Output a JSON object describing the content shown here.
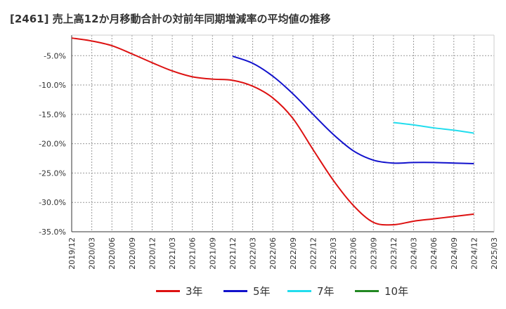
{
  "title": "[2461]  売上高12か月移動合計の対前年同期増減率の平均値の推移",
  "chart_data": {
    "type": "line",
    "title": "[2461]  売上高12か月移動合計の対前年同期増減率の平均値の推移",
    "xlabel": "",
    "ylabel": "",
    "x_ticks": [
      "2019/12",
      "2020/03",
      "2020/06",
      "2020/09",
      "2020/12",
      "2021/03",
      "2021/06",
      "2021/09",
      "2021/12",
      "2022/03",
      "2022/06",
      "2022/09",
      "2022/12",
      "2023/03",
      "2023/06",
      "2023/09",
      "2023/12",
      "2024/03",
      "2024/06",
      "2024/09",
      "2024/12",
      "2025/03"
    ],
    "y_ticks": [
      -5.0,
      -10.0,
      -15.0,
      -20.0,
      -25.0,
      -30.0,
      -35.0
    ],
    "y_tick_labels": [
      "-5.0%",
      "-10.0%",
      "-15.0%",
      "-20.0%",
      "-25.0%",
      "-30.0%",
      "-35.0%"
    ],
    "ylim": [
      -35.0,
      -1.5
    ],
    "grid": true,
    "legend_position": "bottom",
    "series": [
      {
        "name": "3年",
        "color": "#dd1111",
        "points": [
          [
            "2019/12",
            -2.0
          ],
          [
            "2020/03",
            -2.5
          ],
          [
            "2020/06",
            -3.3
          ],
          [
            "2020/09",
            -4.7
          ],
          [
            "2020/12",
            -6.2
          ],
          [
            "2021/03",
            -7.6
          ],
          [
            "2021/06",
            -8.6
          ],
          [
            "2021/09",
            -9.0
          ],
          [
            "2021/12",
            -9.2
          ],
          [
            "2022/03",
            -10.2
          ],
          [
            "2022/06",
            -12.2
          ],
          [
            "2022/09",
            -15.7
          ],
          [
            "2022/12",
            -21.0
          ],
          [
            "2023/03",
            -26.2
          ],
          [
            "2023/06",
            -30.5
          ],
          [
            "2023/09",
            -33.4
          ],
          [
            "2023/12",
            -33.8
          ],
          [
            "2024/03",
            -33.2
          ],
          [
            "2024/06",
            -32.8
          ],
          [
            "2024/09",
            -32.4
          ],
          [
            "2024/12",
            -32.0
          ]
        ]
      },
      {
        "name": "5年",
        "color": "#1111cc",
        "points": [
          [
            "2021/12",
            -5.1
          ],
          [
            "2022/03",
            -6.3
          ],
          [
            "2022/06",
            -8.5
          ],
          [
            "2022/09",
            -11.5
          ],
          [
            "2022/12",
            -15.0
          ],
          [
            "2023/03",
            -18.4
          ],
          [
            "2023/06",
            -21.2
          ],
          [
            "2023/09",
            -22.8
          ],
          [
            "2023/12",
            -23.3
          ],
          [
            "2024/03",
            -23.2
          ],
          [
            "2024/06",
            -23.2
          ],
          [
            "2024/09",
            -23.3
          ],
          [
            "2024/12",
            -23.4
          ]
        ]
      },
      {
        "name": "7年",
        "color": "#22ddee",
        "points": [
          [
            "2023/12",
            -16.4
          ],
          [
            "2024/03",
            -16.8
          ],
          [
            "2024/06",
            -17.3
          ],
          [
            "2024/09",
            -17.7
          ],
          [
            "2024/12",
            -18.2
          ]
        ]
      },
      {
        "name": "10年",
        "color": "#228822",
        "points": []
      }
    ]
  }
}
